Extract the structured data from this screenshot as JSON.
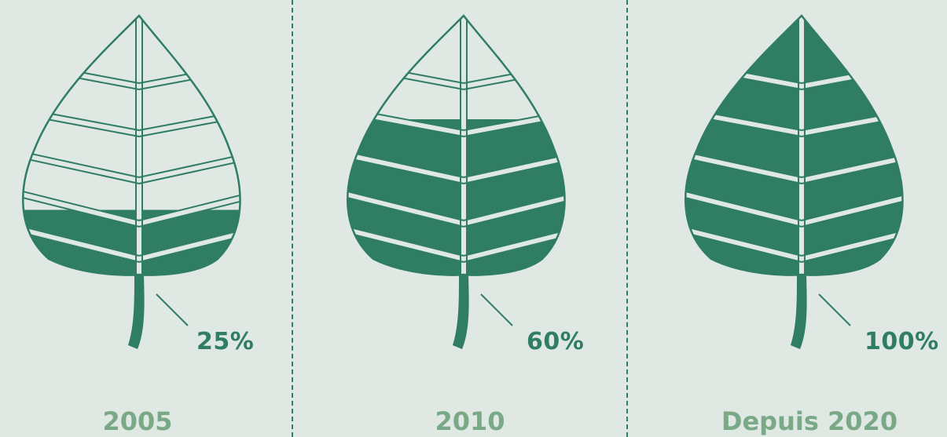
{
  "colors": {
    "background": "#dfe8e2",
    "leaf": "#2f7d63",
    "year_text": "#7aa987",
    "divider": "#2f7d63"
  },
  "leaves": [
    {
      "year": "2005",
      "percent_label": "25%",
      "fill_fraction": 0.25
    },
    {
      "year": "2010",
      "percent_label": "60%",
      "fill_fraction": 0.6
    },
    {
      "year": "Depuis 2020",
      "percent_label": "100%",
      "fill_fraction": 1.0
    }
  ]
}
